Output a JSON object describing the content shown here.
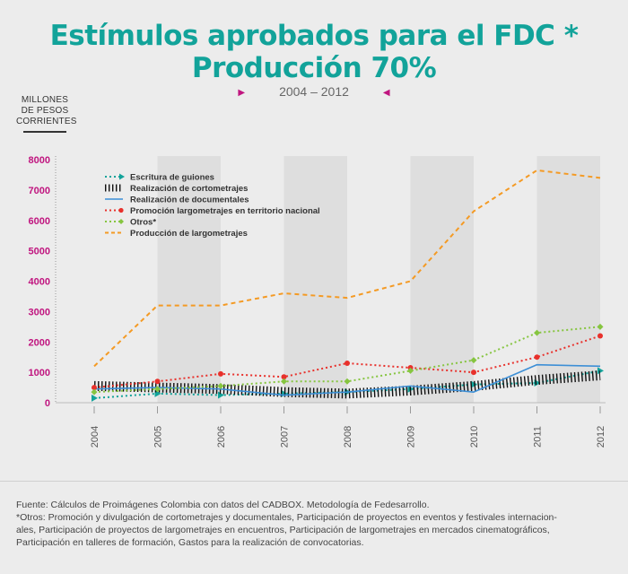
{
  "title_line1": "Estímulos aprobados para el FDC *",
  "title_line2": "Producción 70%",
  "subtitle": "2004 – 2012",
  "unit_label_lines": [
    "MILLONES",
    "DE PESOS",
    "CORRIENTES"
  ],
  "footer": {
    "source": "Fuente: Cálculos de Proimágenes Colombia con datos del CADBOX. Metodología de Fedesarrollo.",
    "note_lines": [
      "*Otros: Promoción y divulgación de cortometrajes y documentales, Participación de proyectos en eventos y festivales internacion-",
      "ales, Participación de proyectos de largometrajes en encuentros, Participación de largometrajes en mercados cinematográficos,",
      "Participación en talleres de formación, Gastos para la realización de convocatorias."
    ]
  },
  "chart_data": {
    "type": "line",
    "title": "Estímulos aprobados para el FDC * Producción 70%",
    "subtitle": "2004 – 2012",
    "ylabel": "MILLONES DE PESOS CORRIENTES",
    "xlabel": "",
    "x": [
      "2004",
      "2005",
      "2006",
      "2007",
      "2008",
      "2009",
      "2010",
      "2011",
      "2012"
    ],
    "yticks": [
      0,
      1000,
      2000,
      3000,
      4000,
      5000,
      6000,
      7000,
      8000
    ],
    "ylim": [
      0,
      8000
    ],
    "legend_position": "top-left",
    "grid": false,
    "series": [
      {
        "name": "Escritura de guiones",
        "color": "#12a39a",
        "style": "dotted-arrow",
        "values": [
          150,
          300,
          250,
          300,
          350,
          450,
          600,
          650,
          1050
        ]
      },
      {
        "name": "Realización de cortometrajes",
        "color": "#111111",
        "style": "hatched",
        "values": [
          550,
          500,
          450,
          350,
          300,
          400,
          550,
          750,
          900
        ]
      },
      {
        "name": "Realización de documentales",
        "color": "#3d8fd6",
        "style": "solid",
        "values": [
          450,
          500,
          450,
          250,
          350,
          550,
          350,
          1250,
          1200
        ]
      },
      {
        "name": "Promoción largometrajes en territorio nacional",
        "color": "#e8312c",
        "style": "dotted-dot",
        "values": [
          500,
          700,
          950,
          850,
          1300,
          1150,
          1000,
          1500,
          2200
        ]
      },
      {
        "name": "Otros*",
        "color": "#86c540",
        "style": "dotted-diamond",
        "values": [
          350,
          450,
          550,
          700,
          700,
          1050,
          1400,
          2300,
          2500
        ]
      },
      {
        "name": "Producción de largometrajes",
        "color": "#f49a24",
        "style": "dashed",
        "values": [
          1200,
          3200,
          3200,
          3600,
          3450,
          4000,
          6300,
          7650,
          7400
        ]
      }
    ]
  }
}
